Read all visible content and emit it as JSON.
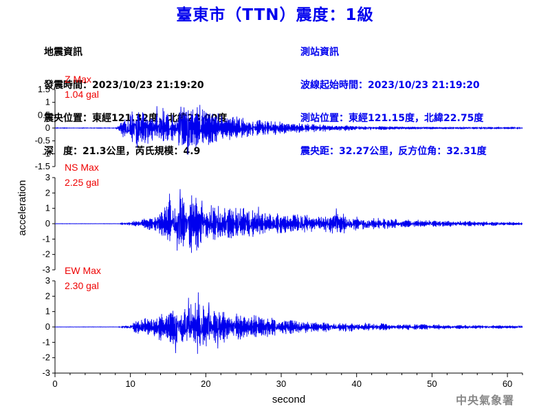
{
  "title": "臺東市（TTN）震度：1級",
  "quake": {
    "heading": "地震資訊",
    "lines": [
      "發震時間：2023/10/23 21:19:20",
      "震央位置：東經121.32度，北緯23.00度",
      "深　度：21.3公里，芮氏規模：4.9"
    ]
  },
  "station": {
    "heading": "測站資訊",
    "lines": [
      "波線起始時間：2023/10/23 21:19:20",
      "測站位置：東經121.15度，北緯22.75度",
      "震央距：32.27公里，反方位角：32.31度"
    ]
  },
  "footer": "中央氣象署",
  "colors": {
    "trace": "#0000ee",
    "label": "#ee0000",
    "title": "#0000ee",
    "text": "#000000"
  },
  "chart_data": {
    "type": "line",
    "xlabel": "second",
    "ylabel": "acceleration",
    "xlim": [
      0,
      62
    ],
    "xticks": [
      0,
      10,
      20,
      30,
      40,
      50,
      60
    ],
    "grid": false,
    "series": [
      {
        "name": "Z",
        "label_line1": "Z Max",
        "label_line2": "1.04 gal",
        "ylim": [
          -1.5,
          1.5
        ],
        "yticks": [
          -1.5,
          -1,
          -0.5,
          0,
          0.5,
          1,
          1.5
        ],
        "ytick_labels": [
          "-1.5",
          "-1",
          "-0.5",
          "0",
          "0.5",
          "1",
          "1.5"
        ],
        "max": 1.04,
        "envelope": {
          "t": [
            0,
            8.0,
            8.6,
            9.0,
            10,
            11,
            12,
            13,
            14,
            15,
            16,
            17,
            18,
            19,
            20,
            21,
            22,
            23,
            24,
            25,
            26,
            28,
            30,
            32,
            35,
            38,
            40,
            45,
            50,
            55,
            62
          ],
          "a": [
            0.01,
            0.01,
            0.12,
            0.38,
            0.75,
            0.7,
            0.65,
            0.62,
            0.75,
            0.72,
            0.58,
            0.86,
            0.8,
            0.93,
            0.75,
            0.62,
            0.6,
            0.5,
            0.45,
            0.48,
            0.4,
            0.33,
            0.26,
            0.22,
            0.16,
            0.12,
            0.1,
            0.07,
            0.05,
            0.04,
            0.03
          ]
        },
        "peaks": [
          [
            17.6,
            -1.04
          ],
          [
            19.2,
            0.9
          ],
          [
            13.5,
            0.85
          ],
          [
            16.7,
            0.83
          ],
          [
            10.9,
            -0.75
          ],
          [
            14.3,
            0.78
          ]
        ]
      },
      {
        "name": "NS",
        "label_line1": "NS Max",
        "label_line2": "2.25 gal",
        "ylim": [
          -3,
          3
        ],
        "yticks": [
          -3,
          -2,
          -1,
          0,
          1,
          2,
          3
        ],
        "ytick_labels": [
          "-3",
          "-2",
          "-1",
          "0",
          "1",
          "2",
          "3"
        ],
        "max": 2.25,
        "envelope": {
          "t": [
            0,
            8.5,
            9.0,
            10,
            11,
            12,
            13,
            14,
            15,
            16,
            17,
            18,
            19,
            20,
            21,
            22,
            23,
            25,
            27,
            29,
            31,
            33,
            35,
            37,
            39,
            42,
            46,
            50,
            55,
            62
          ],
          "a": [
            0.01,
            0.01,
            0.06,
            0.15,
            0.25,
            0.35,
            0.5,
            0.9,
            1.5,
            1.7,
            1.9,
            1.95,
            1.7,
            1.5,
            1.3,
            1.15,
            1.0,
            1.05,
            0.85,
            0.75,
            0.6,
            0.7,
            0.45,
            0.85,
            0.6,
            0.4,
            0.3,
            0.22,
            0.18,
            0.12
          ]
        },
        "peaks": [
          [
            15.2,
            1.95
          ],
          [
            16.6,
            2.25
          ],
          [
            16.2,
            -1.75
          ],
          [
            18.1,
            -1.9
          ],
          [
            19.5,
            1.5
          ],
          [
            27.0,
            1.1
          ],
          [
            37.3,
            1.0
          ]
        ]
      },
      {
        "name": "EW",
        "label_line1": "EW Max",
        "label_line2": "2.30 gal",
        "ylim": [
          -3,
          3
        ],
        "yticks": [
          -3,
          -2,
          -1,
          0,
          1,
          2,
          3
        ],
        "ytick_labels": [
          "-3",
          "-2",
          "-1",
          "0",
          "1",
          "2",
          "3"
        ],
        "max": 2.3,
        "envelope": {
          "t": [
            0,
            8.3,
            9.0,
            10,
            11,
            12,
            13,
            14,
            15,
            16,
            17,
            18,
            19,
            20,
            21,
            22,
            23,
            24,
            26,
            28,
            30,
            33,
            36,
            40,
            45,
            50,
            55,
            62
          ],
          "a": [
            0.01,
            0.01,
            0.08,
            0.25,
            0.45,
            0.6,
            0.7,
            0.9,
            1.05,
            1.2,
            1.5,
            1.6,
            1.75,
            1.45,
            1.25,
            1.1,
            1.0,
            0.9,
            0.8,
            0.7,
            0.55,
            0.4,
            0.35,
            0.3,
            0.22,
            0.18,
            0.13,
            0.1
          ]
        },
        "peaks": [
          [
            17.7,
            1.9
          ],
          [
            18.9,
            -1.75
          ],
          [
            19.0,
            2.25
          ],
          [
            16.0,
            -1.7
          ],
          [
            20.4,
            1.6
          ],
          [
            21.6,
            -1.4
          ]
        ]
      }
    ]
  }
}
